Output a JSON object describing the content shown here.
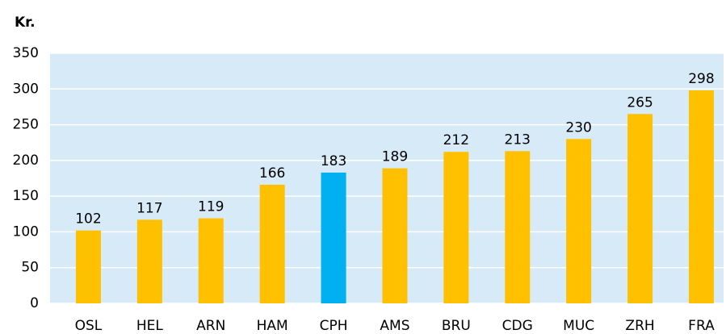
{
  "chart_data": {
    "type": "bar",
    "ylabel": "Kr.",
    "categories": [
      "OSL",
      "HEL",
      "ARN",
      "HAM",
      "CPH",
      "AMS",
      "BRU",
      "CDG",
      "MUC",
      "ZRH",
      "FRA"
    ],
    "values": [
      102,
      117,
      119,
      166,
      183,
      189,
      212,
      213,
      230,
      265,
      298
    ],
    "colors": [
      "#ffc000",
      "#ffc000",
      "#ffc000",
      "#ffc000",
      "#00b0f0",
      "#ffc000",
      "#ffc000",
      "#ffc000",
      "#ffc000",
      "#ffc000",
      "#ffc000"
    ],
    "ylim": [
      0,
      350
    ],
    "yticks": [
      0,
      50,
      100,
      150,
      200,
      250,
      300,
      350
    ],
    "grid": true
  }
}
